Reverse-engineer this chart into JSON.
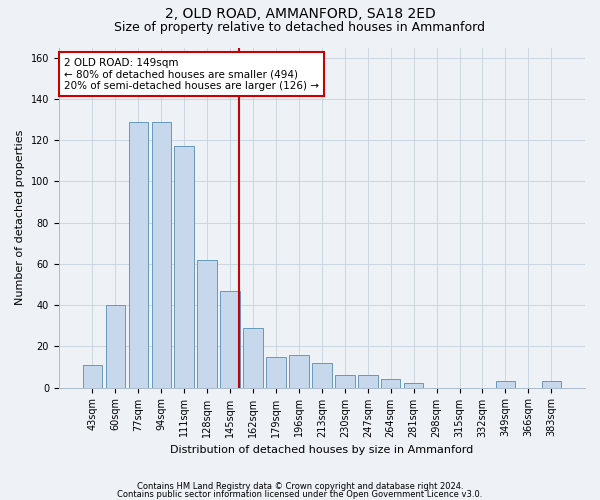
{
  "title1": "2, OLD ROAD, AMMANFORD, SA18 2ED",
  "title2": "Size of property relative to detached houses in Ammanford",
  "xlabel": "Distribution of detached houses by size in Ammanford",
  "ylabel": "Number of detached properties",
  "categories": [
    "43sqm",
    "60sqm",
    "77sqm",
    "94sqm",
    "111sqm",
    "128sqm",
    "145sqm",
    "162sqm",
    "179sqm",
    "196sqm",
    "213sqm",
    "230sqm",
    "247sqm",
    "264sqm",
    "281sqm",
    "298sqm",
    "315sqm",
    "332sqm",
    "349sqm",
    "366sqm",
    "383sqm"
  ],
  "values": [
    11,
    40,
    129,
    129,
    117,
    62,
    47,
    29,
    15,
    16,
    12,
    6,
    6,
    4,
    2,
    0,
    0,
    0,
    3,
    0,
    3
  ],
  "bar_color": "#c8d8ec",
  "bar_edge_color": "#6699bb",
  "vline_color": "#cc0000",
  "vline_pos": 6.4,
  "annotation_line1": "2 OLD ROAD: 149sqm",
  "annotation_line2": "← 80% of detached houses are smaller (494)",
  "annotation_line3": "20% of semi-detached houses are larger (126) →",
  "annotation_box_color": "#cc0000",
  "ylim": [
    0,
    165
  ],
  "yticks": [
    0,
    20,
    40,
    60,
    80,
    100,
    120,
    140,
    160
  ],
  "footer1": "Contains HM Land Registry data © Crown copyright and database right 2024.",
  "footer2": "Contains public sector information licensed under the Open Government Licence v3.0.",
  "bg_color": "#eef2f6",
  "plot_bg_color": "#eef2f6",
  "grid_color": "#c0ccd8",
  "title1_fontsize": 10,
  "title2_fontsize": 9,
  "xlabel_fontsize": 8,
  "ylabel_fontsize": 8,
  "tick_fontsize": 7,
  "footer_fontsize": 6
}
